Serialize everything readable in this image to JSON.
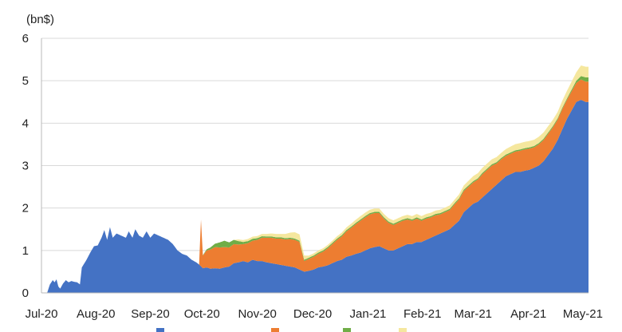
{
  "chart_data": {
    "type": "area",
    "stacked": true,
    "unit_label": "(bn$)",
    "ylim": [
      0,
      6
    ],
    "yticks": [
      "0",
      "1",
      "2",
      "3",
      "4",
      "5",
      "6"
    ],
    "xticks": [
      "Jul-20",
      "Aug-20",
      "Sep-20",
      "Oct-20",
      "Nov-20",
      "Dec-20",
      "Jan-21",
      "Feb-21",
      "Mar-21",
      "Apr-21",
      "May-21"
    ],
    "grid": true,
    "legend_position": "bottom",
    "series": [
      {
        "color": "#4472C4",
        "points": [
          [
            0,
            0
          ],
          [
            0.6,
            0
          ],
          [
            0.9,
            0.2
          ],
          [
            1.2,
            0.3
          ],
          [
            1.4,
            0.25
          ],
          [
            1.6,
            0.32
          ],
          [
            1.8,
            0.15
          ],
          [
            2.0,
            0.1
          ],
          [
            2.3,
            0.22
          ],
          [
            2.6,
            0.3
          ],
          [
            2.9,
            0.25
          ],
          [
            3.2,
            0.28
          ],
          [
            3.5,
            0.26
          ],
          [
            3.8,
            0.25
          ],
          [
            4.1,
            0.2
          ],
          [
            4.3,
            0.6
          ],
          [
            4.8,
            0.78
          ],
          [
            5.2,
            0.95
          ],
          [
            5.6,
            1.1
          ],
          [
            6.0,
            1.12
          ],
          [
            6.4,
            1.3
          ],
          [
            6.7,
            1.48
          ],
          [
            7.0,
            1.25
          ],
          [
            7.3,
            1.55
          ],
          [
            7.6,
            1.3
          ],
          [
            8.0,
            1.4
          ],
          [
            8.5,
            1.35
          ],
          [
            9.0,
            1.3
          ],
          [
            9.3,
            1.45
          ],
          [
            9.7,
            1.3
          ],
          [
            10.0,
            1.5
          ],
          [
            10.4,
            1.35
          ],
          [
            10.8,
            1.3
          ],
          [
            11.2,
            1.45
          ],
          [
            11.6,
            1.3
          ],
          [
            12.0,
            1.4
          ],
          [
            12.5,
            1.35
          ],
          [
            13.0,
            1.3
          ],
          [
            13.5,
            1.25
          ],
          [
            14.0,
            1.15
          ],
          [
            14.5,
            1.0
          ],
          [
            15.0,
            0.92
          ],
          [
            15.5,
            0.88
          ],
          [
            16.0,
            0.78
          ],
          [
            16.5,
            0.72
          ],
          [
            16.9,
            0.65
          ],
          [
            17.2,
            0.58
          ],
          [
            17.6,
            0.6
          ],
          [
            18.0,
            0.57
          ],
          [
            18.5,
            0.58
          ],
          [
            19.0,
            0.57
          ],
          [
            19.5,
            0.6
          ],
          [
            20.0,
            0.62
          ],
          [
            20.5,
            0.7
          ],
          [
            21.0,
            0.72
          ],
          [
            21.5,
            0.75
          ],
          [
            22.0,
            0.72
          ],
          [
            22.5,
            0.78
          ],
          [
            23.0,
            0.75
          ],
          [
            23.5,
            0.75
          ],
          [
            24.0,
            0.72
          ],
          [
            24.5,
            0.7
          ],
          [
            25.0,
            0.68
          ],
          [
            25.5,
            0.66
          ],
          [
            26.0,
            0.64
          ],
          [
            26.5,
            0.62
          ],
          [
            27.0,
            0.6
          ],
          [
            27.5,
            0.55
          ],
          [
            28.0,
            0.5
          ],
          [
            28.5,
            0.52
          ],
          [
            29.0,
            0.55
          ],
          [
            29.5,
            0.6
          ],
          [
            30.0,
            0.62
          ],
          [
            30.5,
            0.65
          ],
          [
            31.0,
            0.7
          ],
          [
            31.5,
            0.75
          ],
          [
            32.0,
            0.78
          ],
          [
            32.5,
            0.85
          ],
          [
            33.0,
            0.88
          ],
          [
            33.5,
            0.92
          ],
          [
            34.0,
            0.95
          ],
          [
            34.5,
            1.0
          ],
          [
            35.0,
            1.05
          ],
          [
            35.5,
            1.08
          ],
          [
            36.0,
            1.1
          ],
          [
            36.5,
            1.05
          ],
          [
            37.0,
            1.0
          ],
          [
            37.5,
            1.0
          ],
          [
            38.0,
            1.05
          ],
          [
            38.5,
            1.1
          ],
          [
            39.0,
            1.15
          ],
          [
            39.5,
            1.15
          ],
          [
            40.0,
            1.2
          ],
          [
            40.5,
            1.2
          ],
          [
            41.0,
            1.25
          ],
          [
            41.5,
            1.3
          ],
          [
            42.0,
            1.35
          ],
          [
            42.5,
            1.4
          ],
          [
            43.0,
            1.45
          ],
          [
            43.5,
            1.5
          ],
          [
            44.0,
            1.6
          ],
          [
            44.5,
            1.7
          ],
          [
            45.0,
            1.9
          ],
          [
            45.5,
            2.0
          ],
          [
            46.0,
            2.1
          ],
          [
            46.5,
            2.15
          ],
          [
            47.0,
            2.25
          ],
          [
            47.5,
            2.35
          ],
          [
            48.0,
            2.45
          ],
          [
            48.5,
            2.55
          ],
          [
            49.0,
            2.65
          ],
          [
            49.5,
            2.75
          ],
          [
            50.0,
            2.8
          ],
          [
            50.5,
            2.85
          ],
          [
            51.0,
            2.85
          ],
          [
            51.5,
            2.88
          ],
          [
            52.0,
            2.9
          ],
          [
            52.5,
            2.95
          ],
          [
            53.0,
            3.0
          ],
          [
            53.5,
            3.1
          ],
          [
            54.0,
            3.25
          ],
          [
            54.5,
            3.4
          ],
          [
            55.0,
            3.6
          ],
          [
            55.5,
            3.85
          ],
          [
            56.0,
            4.1
          ],
          [
            56.5,
            4.3
          ],
          [
            57.0,
            4.5
          ],
          [
            57.5,
            4.55
          ],
          [
            58.0,
            4.5
          ],
          [
            58.3,
            4.5
          ]
        ]
      },
      {
        "color": "#ED7D31",
        "points": [
          [
            0,
            0
          ],
          [
            16.8,
            0
          ],
          [
            17.0,
            1.1
          ],
          [
            17.2,
            0.3
          ],
          [
            17.6,
            0.4
          ],
          [
            18.0,
            0.45
          ],
          [
            18.5,
            0.5
          ],
          [
            19.0,
            0.5
          ],
          [
            19.5,
            0.48
          ],
          [
            20.0,
            0.45
          ],
          [
            20.5,
            0.45
          ],
          [
            21.0,
            0.42
          ],
          [
            21.5,
            0.4
          ],
          [
            22.0,
            0.45
          ],
          [
            22.5,
            0.45
          ],
          [
            23.0,
            0.5
          ],
          [
            23.5,
            0.55
          ],
          [
            24.0,
            0.58
          ],
          [
            24.5,
            0.6
          ],
          [
            25.0,
            0.6
          ],
          [
            25.5,
            0.62
          ],
          [
            26.0,
            0.62
          ],
          [
            26.5,
            0.65
          ],
          [
            27.0,
            0.65
          ],
          [
            27.5,
            0.65
          ],
          [
            28.0,
            0.25
          ],
          [
            28.5,
            0.28
          ],
          [
            29.0,
            0.3
          ],
          [
            29.5,
            0.32
          ],
          [
            30.0,
            0.35
          ],
          [
            30.5,
            0.4
          ],
          [
            31.0,
            0.45
          ],
          [
            31.5,
            0.5
          ],
          [
            32.0,
            0.55
          ],
          [
            32.5,
            0.6
          ],
          [
            33.0,
            0.65
          ],
          [
            33.5,
            0.7
          ],
          [
            34.0,
            0.75
          ],
          [
            34.5,
            0.78
          ],
          [
            35.0,
            0.8
          ],
          [
            35.5,
            0.8
          ],
          [
            36.0,
            0.78
          ],
          [
            36.5,
            0.7
          ],
          [
            37.0,
            0.65
          ],
          [
            37.5,
            0.6
          ],
          [
            38.0,
            0.6
          ],
          [
            38.5,
            0.6
          ],
          [
            39.0,
            0.58
          ],
          [
            39.5,
            0.55
          ],
          [
            40.0,
            0.55
          ],
          [
            40.5,
            0.5
          ],
          [
            41.0,
            0.5
          ],
          [
            41.5,
            0.48
          ],
          [
            42.0,
            0.48
          ],
          [
            42.5,
            0.45
          ],
          [
            43.0,
            0.45
          ],
          [
            43.5,
            0.45
          ],
          [
            44.0,
            0.48
          ],
          [
            44.5,
            0.5
          ],
          [
            45.0,
            0.5
          ],
          [
            45.5,
            0.5
          ],
          [
            46.0,
            0.5
          ],
          [
            46.5,
            0.52
          ],
          [
            47.0,
            0.55
          ],
          [
            47.5,
            0.55
          ],
          [
            48.0,
            0.55
          ],
          [
            48.5,
            0.5
          ],
          [
            49.0,
            0.5
          ],
          [
            49.5,
            0.48
          ],
          [
            50.0,
            0.48
          ],
          [
            50.5,
            0.48
          ],
          [
            51.0,
            0.5
          ],
          [
            51.5,
            0.5
          ],
          [
            52.0,
            0.5
          ],
          [
            52.5,
            0.48
          ],
          [
            53.0,
            0.5
          ],
          [
            53.5,
            0.5
          ],
          [
            54.0,
            0.5
          ],
          [
            54.5,
            0.5
          ],
          [
            55.0,
            0.48
          ],
          [
            55.5,
            0.48
          ],
          [
            56.0,
            0.45
          ],
          [
            56.5,
            0.45
          ],
          [
            57.0,
            0.45
          ],
          [
            57.5,
            0.48
          ],
          [
            58.0,
            0.48
          ],
          [
            58.3,
            0.48
          ]
        ]
      },
      {
        "color": "#70AD47",
        "points": [
          [
            0,
            0
          ],
          [
            16.8,
            0
          ],
          [
            17.0,
            0
          ],
          [
            17.5,
            0.02
          ],
          [
            18.0,
            0.05
          ],
          [
            18.5,
            0.08
          ],
          [
            19.0,
            0.12
          ],
          [
            19.5,
            0.15
          ],
          [
            20.0,
            0.12
          ],
          [
            20.5,
            0.1
          ],
          [
            21.0,
            0.08
          ],
          [
            21.5,
            0.05
          ],
          [
            22.0,
            0.05
          ],
          [
            23.0,
            0.04
          ],
          [
            24.0,
            0.03
          ],
          [
            25.0,
            0.03
          ],
          [
            26.0,
            0.03
          ],
          [
            27.0,
            0.03
          ],
          [
            28.0,
            0.03
          ],
          [
            29.0,
            0.03
          ],
          [
            30.0,
            0.03
          ],
          [
            31.0,
            0.03
          ],
          [
            32.0,
            0.03
          ],
          [
            33.0,
            0.03
          ],
          [
            34.0,
            0.03
          ],
          [
            35.0,
            0.03
          ],
          [
            36.0,
            0.03
          ],
          [
            37.0,
            0.03
          ],
          [
            38.0,
            0.03
          ],
          [
            39.0,
            0.03
          ],
          [
            40.0,
            0.03
          ],
          [
            41.0,
            0.03
          ],
          [
            42.0,
            0.03
          ],
          [
            43.0,
            0.03
          ],
          [
            44.0,
            0.03
          ],
          [
            45.0,
            0.03
          ],
          [
            46.0,
            0.03
          ],
          [
            47.0,
            0.03
          ],
          [
            48.0,
            0.03
          ],
          [
            49.0,
            0.03
          ],
          [
            50.0,
            0.03
          ],
          [
            51.0,
            0.03
          ],
          [
            52.0,
            0.03
          ],
          [
            53.0,
            0.03
          ],
          [
            54.0,
            0.03
          ],
          [
            55.0,
            0.03
          ],
          [
            56.0,
            0.03
          ],
          [
            57.0,
            0.05
          ],
          [
            57.5,
            0.08
          ],
          [
            58.0,
            0.1
          ],
          [
            58.3,
            0.1
          ]
        ]
      },
      {
        "color": "#F5E79E",
        "points": [
          [
            0,
            0
          ],
          [
            20.5,
            0
          ],
          [
            21.0,
            0.04
          ],
          [
            22.0,
            0.05
          ],
          [
            23.0,
            0.05
          ],
          [
            24.0,
            0.06
          ],
          [
            25.0,
            0.08
          ],
          [
            25.5,
            0.08
          ],
          [
            26.0,
            0.1
          ],
          [
            26.5,
            0.12
          ],
          [
            27.0,
            0.15
          ],
          [
            27.5,
            0.15
          ],
          [
            28.0,
            0.1
          ],
          [
            28.5,
            0.05
          ],
          [
            29.0,
            0.05
          ],
          [
            30.0,
            0.05
          ],
          [
            31.0,
            0.05
          ],
          [
            32.0,
            0.06
          ],
          [
            33.0,
            0.07
          ],
          [
            34.0,
            0.08
          ],
          [
            35.0,
            0.08
          ],
          [
            36.0,
            0.08
          ],
          [
            37.0,
            0.08
          ],
          [
            38.0,
            0.08
          ],
          [
            39.0,
            0.08
          ],
          [
            40.0,
            0.08
          ],
          [
            41.0,
            0.08
          ],
          [
            42.0,
            0.08
          ],
          [
            43.0,
            0.08
          ],
          [
            44.0,
            0.08
          ],
          [
            45.0,
            0.1
          ],
          [
            46.0,
            0.12
          ],
          [
            47.0,
            0.12
          ],
          [
            48.0,
            0.12
          ],
          [
            49.0,
            0.12
          ],
          [
            50.0,
            0.14
          ],
          [
            51.0,
            0.15
          ],
          [
            52.0,
            0.15
          ],
          [
            53.0,
            0.15
          ],
          [
            54.0,
            0.15
          ],
          [
            55.0,
            0.15
          ],
          [
            56.0,
            0.18
          ],
          [
            57.0,
            0.2
          ],
          [
            57.5,
            0.25
          ],
          [
            58.0,
            0.25
          ],
          [
            58.3,
            0.25
          ]
        ]
      }
    ]
  }
}
